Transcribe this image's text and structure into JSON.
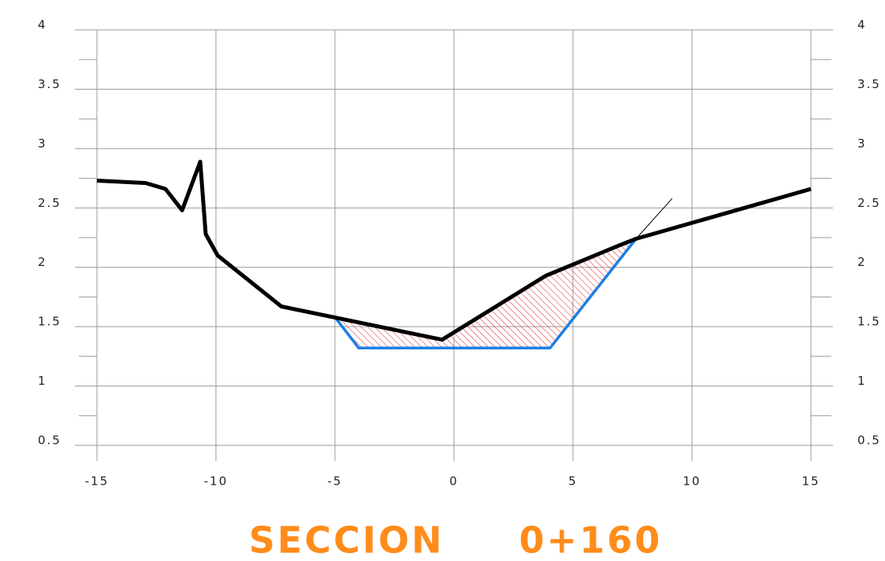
{
  "chart_data": {
    "type": "line",
    "title": "SECCION     0+160",
    "series": [
      {
        "color": "#000000",
        "x": [
          -15,
          -12.95,
          -12.12,
          -11.42,
          -10.66,
          -10.43,
          -9.93,
          -7.25,
          -0.5,
          3.87,
          6.89,
          7.65,
          15
        ],
        "values": [
          2.73,
          2.71,
          2.66,
          2.48,
          2.89,
          2.28,
          2.1,
          1.67,
          1.39,
          1.93,
          2.18,
          2.24,
          2.66
        ]
      },
      {
        "color": "#1a7fe6",
        "x": [
          -5,
          -4,
          4.04,
          7.65
        ],
        "values": [
          1.58,
          1.32,
          1.32,
          2.24
        ]
      },
      {
        "color": "#000000",
        "x": [
          7.65,
          9.17
        ],
        "values": [
          2.24,
          2.58
        ]
      }
    ],
    "hatch_color": "#e02020",
    "xlim": [
      -15,
      15
    ],
    "xticks": [
      -15,
      -10,
      -5,
      0,
      5,
      10,
      15
    ],
    "ylim": [
      0.5,
      4
    ],
    "yticks": [
      0.5,
      1,
      1.5,
      2,
      2.5,
      3,
      3.5,
      4
    ],
    "yminor_ticks": [
      0.75,
      1.25,
      1.75,
      2.25,
      2.75,
      3.25,
      3.75
    ],
    "grid": true
  }
}
